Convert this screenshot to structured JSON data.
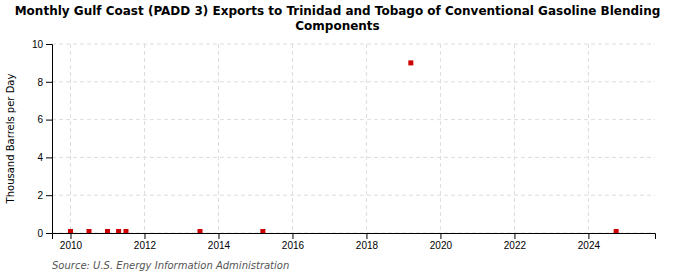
{
  "chart_data": {
    "type": "scatter",
    "title": "Monthly Gulf Coast (PADD 3) Exports to Trinidad and Tobago of Conventional Gasoline Blending\nComponents",
    "ylabel": "Thousand Barrels per Day",
    "source": "Source: U.S. Energy Information Administration",
    "x": [
      2010.0,
      2010.5,
      2011.0,
      2011.3,
      2011.5,
      2013.5,
      2015.2,
      2019.2,
      2024.75
    ],
    "values": [
      0.08,
      0.08,
      0.08,
      0.08,
      0.08,
      0.08,
      0.08,
      9.0,
      0.08
    ],
    "color": "#cc0000",
    "marker": "square",
    "grid": true,
    "xlim": [
      2009.5,
      2025.8
    ],
    "ylim": [
      0,
      10
    ],
    "xticks": [
      2010,
      2012,
      2014,
      2016,
      2018,
      2020,
      2022,
      2024
    ],
    "yticks": [
      0,
      2,
      4,
      6,
      8,
      10
    ]
  }
}
